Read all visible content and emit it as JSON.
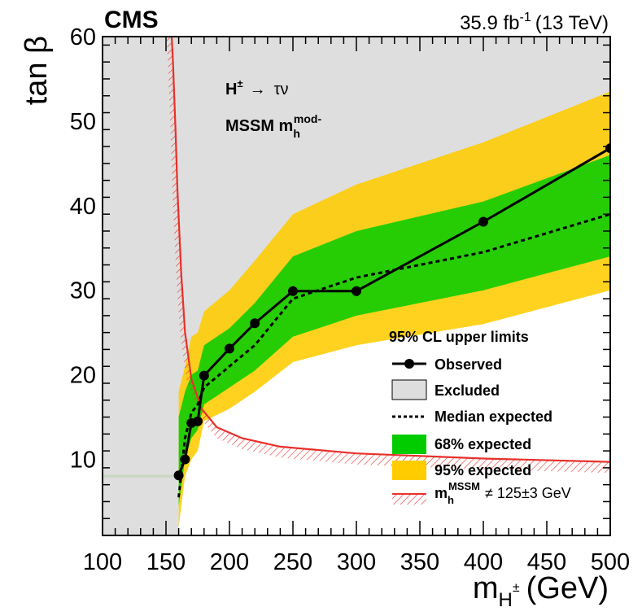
{
  "chart_data": {
    "type": "line",
    "experiment": "CMS",
    "luminosity": "35.9 fb",
    "lumi_exp": "-1",
    "energy": "(13 TeV)",
    "xlabel": "m",
    "xlabel_sub": "H",
    "xlabel_sup": "±",
    "xlabel_unit": "(GeV)",
    "ylabel": "tan β",
    "xlim": [
      100,
      500
    ],
    "ylim": [
      1,
      60
    ],
    "xticks": [
      100,
      150,
      200,
      250,
      300,
      350,
      400,
      450,
      500
    ],
    "yticks": [
      10,
      20,
      30,
      40,
      50,
      60
    ],
    "annotation_process": "H",
    "annotation_process_sup": "±",
    "annotation_process_arrow": "→",
    "annotation_process_decay": "τν",
    "annotation_scenario": "MSSM  m",
    "annotation_scenario_sub": "h",
    "annotation_scenario_sup": "mod-",
    "legend_title": "95% CL upper limits",
    "legend": {
      "observed": "Observed",
      "excluded": "Excluded",
      "median": "Median expected",
      "band68": "68% expected",
      "band95": "95% expected",
      "mh_prefix": "m",
      "mh_sub": "h",
      "mh_sup": "MSSM",
      "mh_suffix": "≠ 125±3 GeV"
    },
    "colors": {
      "excluded": "#dedede",
      "band95": "#ffcc00",
      "band68": "#00cc00",
      "observed": "#000000",
      "mh_line": "#e8302a"
    },
    "series": [
      {
        "name": "Observed",
        "x": [
          160,
          165,
          170,
          175,
          180,
          200,
          220,
          250,
          300,
          400,
          500
        ],
        "y": [
          8.1,
          10.0,
          14.3,
          14.5,
          19.9,
          23.1,
          26.1,
          29.9,
          29.9,
          38.1,
          46.8
        ]
      },
      {
        "name": "Median expected",
        "x": [
          160,
          165,
          170,
          175,
          180,
          200,
          220,
          250,
          300,
          400,
          500
        ],
        "y": [
          5.5,
          12.5,
          15.5,
          16.5,
          18.5,
          21.0,
          23.5,
          29.0,
          31.5,
          34.5,
          39.0
        ]
      },
      {
        "name": "68% expected",
        "x": [
          160,
          165,
          170,
          175,
          180,
          200,
          220,
          250,
          300,
          400,
          500
        ],
        "low": [
          4.5,
          10.0,
          12.5,
          13.5,
          16.5,
          18.5,
          20.5,
          24.5,
          27.0,
          30.0,
          34.0
        ],
        "high": [
          15.0,
          18.0,
          20.0,
          20.5,
          23.5,
          25.5,
          28.5,
          34.0,
          37.0,
          40.5,
          46.0
        ]
      },
      {
        "name": "95% expected",
        "x": [
          160,
          165,
          170,
          175,
          180,
          200,
          220,
          250,
          300,
          400,
          500
        ],
        "low": [
          2.0,
          8.0,
          10.0,
          11.0,
          14.5,
          16.0,
          18.0,
          21.5,
          23.5,
          26.0,
          30.0
        ],
        "high": [
          18.0,
          21.0,
          24.5,
          25.0,
          27.5,
          30.0,
          33.5,
          39.0,
          42.5,
          47.5,
          53.5
        ]
      },
      {
        "name": "Excluded",
        "x": [
          160,
          160,
          165,
          170,
          175,
          180,
          200,
          220,
          250,
          300,
          400,
          500,
          500
        ],
        "y": [
          1,
          8.1,
          10.0,
          14.3,
          14.5,
          19.9,
          23.1,
          26.1,
          29.9,
          29.9,
          38.1,
          46.8,
          60
        ]
      },
      {
        "name": "mh MSSM ≠ 125±3 GeV",
        "x": [
          154.5,
          155.5,
          156.5,
          157.5,
          159,
          162,
          165,
          170,
          178,
          190,
          210,
          240,
          300,
          400,
          500
        ],
        "y": [
          60,
          57,
          53,
          49,
          42,
          32,
          25,
          19.5,
          16,
          13.8,
          12.5,
          11.5,
          10.7,
          10.1,
          9.7
        ]
      },
      {
        "name": "Excluded low tanβ strip",
        "x": [
          100,
          160
        ],
        "y": [
          8,
          8
        ]
      }
    ]
  }
}
